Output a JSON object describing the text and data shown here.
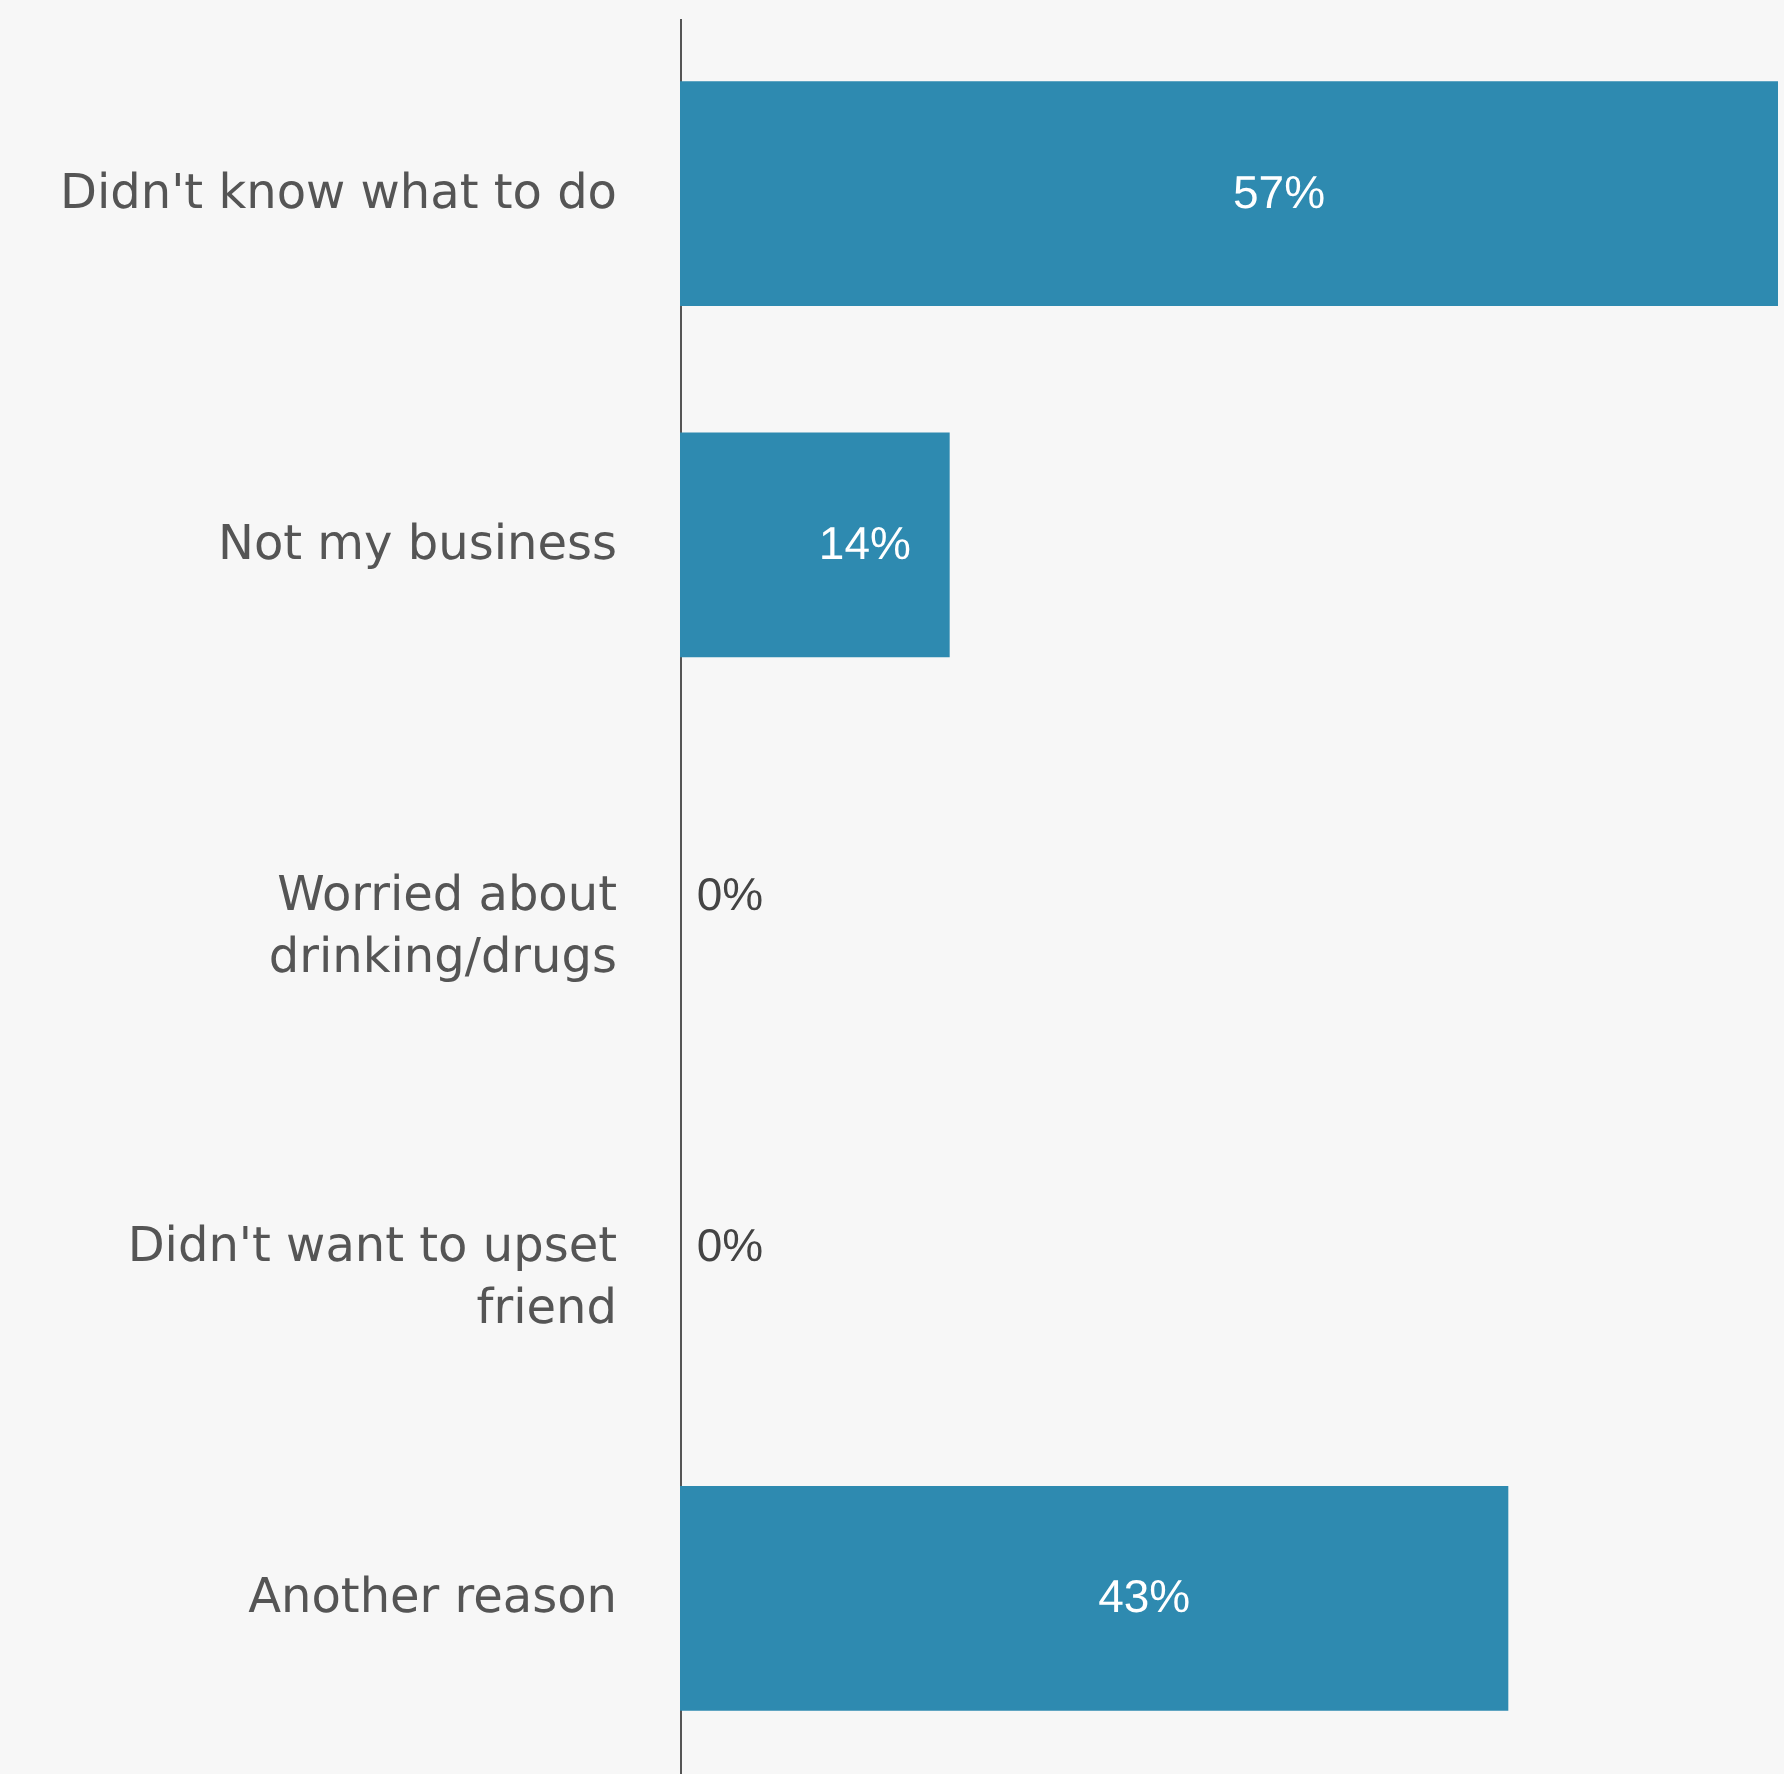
{
  "chart_data": {
    "type": "bar",
    "orientation": "horizontal",
    "categories": [
      "Didn't know what to do",
      "Not my business",
      "Worried about drinking/drugs",
      "Didn't want to upset friend",
      "Another reason"
    ],
    "values": [
      57,
      14,
      0,
      0,
      43
    ],
    "color": "#2e8ab0",
    "value_labels": [
      "57%",
      "14%",
      "0%",
      "0%",
      "43%"
    ],
    "tick_labels": "y"
  }
}
